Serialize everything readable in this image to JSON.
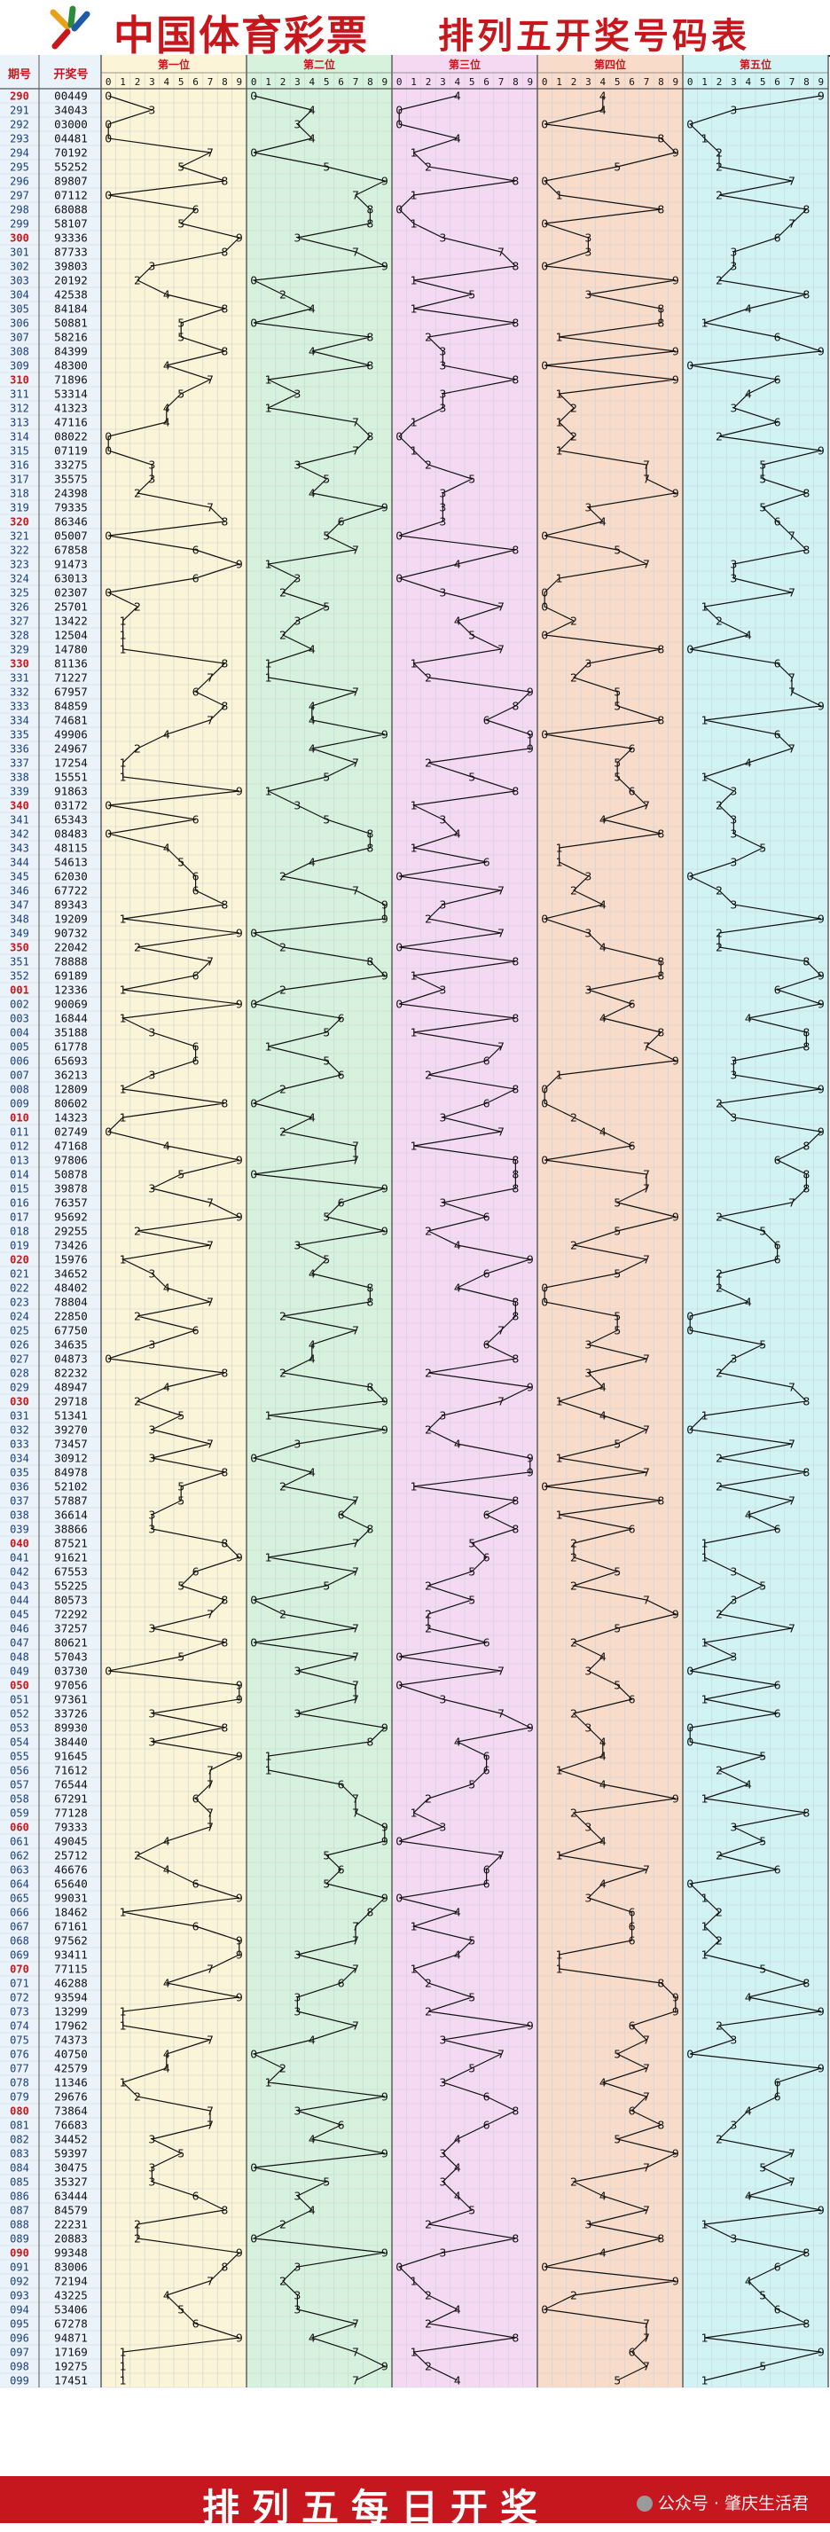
{
  "header": {
    "logo_text": "中国体育彩票",
    "title": "排列五开奖号码表"
  },
  "footer": {
    "text": "排列五每日开奖",
    "watermark": "公众号 · 肇庆生活君"
  },
  "colors": {
    "brand_red": "#c8161d",
    "zone_fills": [
      "#fbf4d6",
      "#d6f2dc",
      "#f5d9f3",
      "#f8dcc9",
      "#d2f3f4"
    ],
    "grid": "#c7d3db",
    "line": "#111111"
  },
  "chart_data": {
    "type": "table",
    "column_headers": [
      "期号",
      "开奖号"
    ],
    "zone_titles": [
      "第一位",
      "第二位",
      "第三位",
      "第四位",
      "第五位"
    ],
    "digit_headers": [
      "0",
      "1",
      "2",
      "3",
      "4",
      "5",
      "6",
      "7",
      "8",
      "9"
    ],
    "issues": [
      "290",
      "291",
      "292",
      "293",
      "294",
      "295",
      "296",
      "297",
      "298",
      "299",
      "300",
      "301",
      "302",
      "303",
      "304",
      "305",
      "306",
      "307",
      "308",
      "309",
      "310",
      "311",
      "312",
      "313",
      "314",
      "315",
      "316",
      "317",
      "318",
      "319",
      "320",
      "321",
      "322",
      "323",
      "324",
      "325",
      "326",
      "327",
      "328",
      "329",
      "330",
      "331",
      "332",
      "333",
      "334",
      "335",
      "336",
      "337",
      "338",
      "339",
      "340",
      "341",
      "342",
      "343",
      "344",
      "345",
      "346",
      "347",
      "348",
      "349",
      "350",
      "351",
      "352",
      "001",
      "002",
      "003",
      "004",
      "005",
      "006",
      "007",
      "008",
      "009",
      "010",
      "011",
      "012",
      "013",
      "014",
      "015",
      "016",
      "017",
      "018",
      "019",
      "020",
      "021",
      "022",
      "023",
      "024",
      "025",
      "026",
      "027",
      "028",
      "029",
      "030",
      "031",
      "032",
      "033",
      "034",
      "035",
      "036",
      "037",
      "038",
      "039",
      "040",
      "041",
      "042",
      "043",
      "044",
      "045",
      "046",
      "047",
      "048",
      "049",
      "050",
      "051",
      "052",
      "053",
      "054",
      "055",
      "056",
      "057",
      "058",
      "059",
      "060",
      "061",
      "062",
      "063",
      "064",
      "065",
      "066",
      "067",
      "068",
      "069",
      "070",
      "071",
      "072",
      "073",
      "074",
      "075",
      "076",
      "077",
      "078",
      "079",
      "080",
      "081",
      "082",
      "083",
      "084",
      "085",
      "086",
      "087",
      "088",
      "089",
      "090",
      "091",
      "092",
      "093",
      "094",
      "095",
      "096",
      "097",
      "098",
      "099"
    ],
    "numbers": [
      "00449",
      "34043",
      "03000",
      "04481",
      "70192",
      "55252",
      "89807",
      "07112",
      "68088",
      "58107",
      "93336",
      "87733",
      "39803",
      "20192",
      "42538",
      "84184",
      "50881",
      "58216",
      "84399",
      "48300",
      "71896",
      "53314",
      "41323",
      "47116",
      "08022",
      "07119",
      "33275",
      "35575",
      "24398",
      "79335",
      "86346",
      "05007",
      "67858",
      "91473",
      "63013",
      "02307",
      "25701",
      "13422",
      "12504",
      "14780",
      "81136",
      "71227",
      "67957",
      "84859",
      "74681",
      "49906",
      "24967",
      "17254",
      "15551",
      "91863",
      "03172",
      "65343",
      "08483",
      "48115",
      "54613",
      "62030",
      "67722",
      "89343",
      "19209",
      "90732",
      "22042",
      "78888",
      "69189",
      "12336",
      "90069",
      "16844",
      "35188",
      "61778",
      "65693",
      "36213",
      "12809",
      "80602",
      "14323",
      "02749",
      "47168",
      "97806",
      "50878",
      "39878",
      "76357",
      "95692",
      "29255",
      "73426",
      "15976",
      "34652",
      "48402",
      "78804",
      "22850",
      "67750",
      "34635",
      "04873",
      "82232",
      "48947",
      "29718",
      "51341",
      "39270",
      "73457",
      "30912",
      "84978",
      "52102",
      "57887",
      "36614",
      "38866",
      "87521",
      "91621",
      "67553",
      "55225",
      "80573",
      "72292",
      "37257",
      "80621",
      "57043",
      "03730",
      "97056",
      "97361",
      "33726",
      "89930",
      "38440",
      "91645",
      "71612",
      "76544",
      "67291",
      "77128",
      "79333",
      "49045",
      "25712",
      "46676",
      "65640",
      "99031",
      "18462",
      "67161",
      "97562",
      "93411",
      "77115",
      "46288",
      "93594",
      "13299",
      "17962",
      "74373",
      "40750",
      "42579",
      "11346",
      "29676",
      "73864",
      "76683",
      "34452",
      "59397",
      "30475",
      "35327",
      "63444",
      "84579",
      "22231",
      "20883",
      "99348",
      "83006",
      "72194",
      "43225",
      "53406",
      "67278",
      "94871",
      "17169",
      "19275",
      "17451"
    ]
  }
}
